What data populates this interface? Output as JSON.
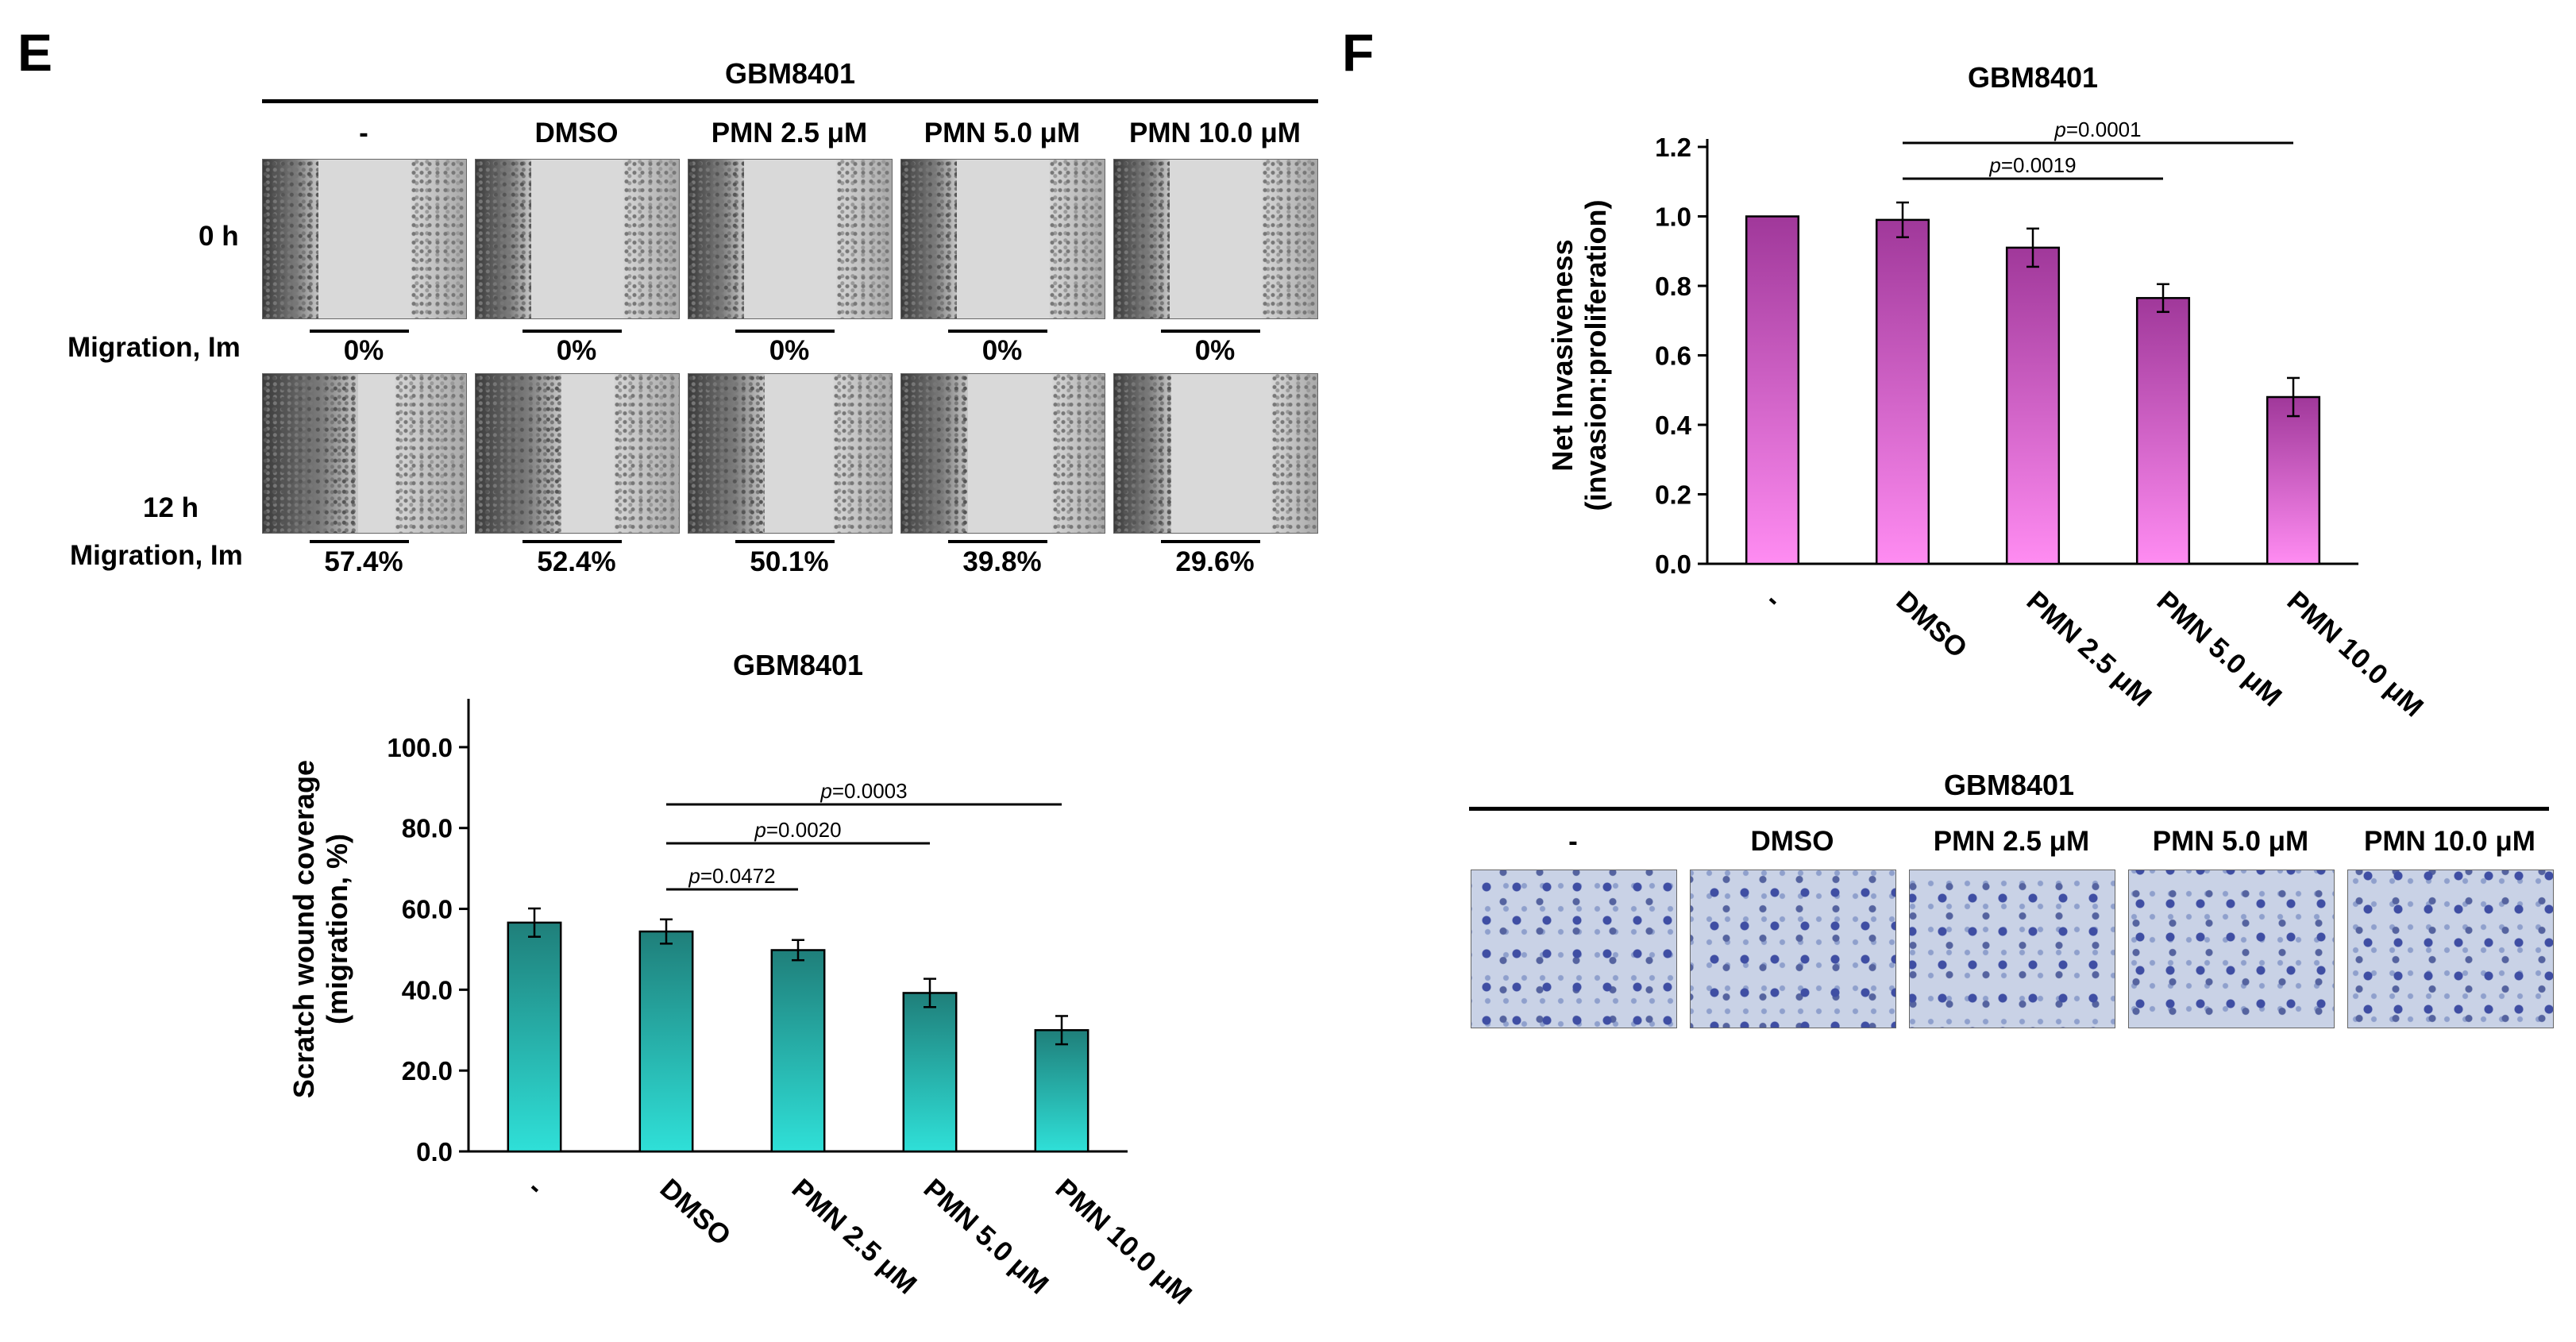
{
  "panels": {
    "e_letter": "E",
    "f_letter": "F"
  },
  "scratch_assay": {
    "title": "GBM8401",
    "conditions": [
      "-",
      "DMSO",
      "PMN 2.5 μM",
      "PMN 5.0 μM",
      "PMN 10.0 μM"
    ],
    "row_labels": [
      "0 h",
      "12 h"
    ],
    "migration_label": "Migration, Im",
    "migration_0h": [
      "0%",
      "0%",
      "0%",
      "0%",
      "0%"
    ],
    "migration_12h": [
      "57.4%",
      "52.4%",
      "50.1%",
      "39.8%",
      "29.6%"
    ]
  },
  "transwell": {
    "title": "GBM8401",
    "conditions": [
      "-",
      "DMSO",
      "PMN 2.5 μM",
      "PMN 5.0 μM",
      "PMN 10.0 μM"
    ]
  },
  "colors": {
    "teal_top": "#1f7f7a",
    "teal_bottom": "#2fe0d8",
    "magenta_top": "#a0389a",
    "magenta_bottom": "#ff8cf2"
  },
  "chart_data": [
    {
      "type": "bar",
      "title": "GBM8401",
      "categories": [
        "-",
        "DMSO",
        "PMN 2.5 μM",
        "PMN 5.0 μM",
        "PMN 10.0 μM"
      ],
      "values": [
        56.6,
        54.4,
        49.8,
        39.2,
        30.0
      ],
      "errors": [
        3.5,
        3.0,
        2.5,
        3.5,
        3.5
      ],
      "ylabel": "Scratch wound coverage\n(migration, %)",
      "ylim": [
        0,
        110
      ],
      "yticks": [
        "0.0",
        "20.0",
        "40.0",
        "60.0",
        "80.0",
        "100.0"
      ],
      "significance": [
        {
          "from": "DMSO",
          "to": "PMN 2.5 μM",
          "label_p": "p",
          "label_v": "=0.0472"
        },
        {
          "from": "DMSO",
          "to": "PMN 5.0 μM",
          "label_p": "p",
          "label_v": "=0.0020"
        },
        {
          "from": "DMSO",
          "to": "PMN 10.0 μM",
          "label_p": "p",
          "label_v": "=0.0003"
        }
      ],
      "grid": false
    },
    {
      "type": "bar",
      "title": "GBM8401",
      "categories": [
        "-",
        "DMSO",
        "PMN 2.5 μM",
        "PMN 5.0 μM",
        "PMN 10.0 μM"
      ],
      "values": [
        1.0,
        0.99,
        0.91,
        0.765,
        0.48
      ],
      "errors": [
        0.0,
        0.05,
        0.055,
        0.04,
        0.055
      ],
      "ylabel": "Net Invasiveness\n(invasion:proliferation)",
      "ylim": [
        0,
        1.2
      ],
      "yticks": [
        "0.0",
        "0.2",
        "0.4",
        "0.6",
        "0.8",
        "1.0",
        "1.2"
      ],
      "significance": [
        {
          "from": "DMSO",
          "to": "PMN 5.0 μM",
          "label_p": "p",
          "label_v": "=0.0019"
        },
        {
          "from": "DMSO",
          "to": "PMN 10.0 μM",
          "label_p": "p",
          "label_v": "=0.0001"
        }
      ],
      "grid": false
    }
  ]
}
